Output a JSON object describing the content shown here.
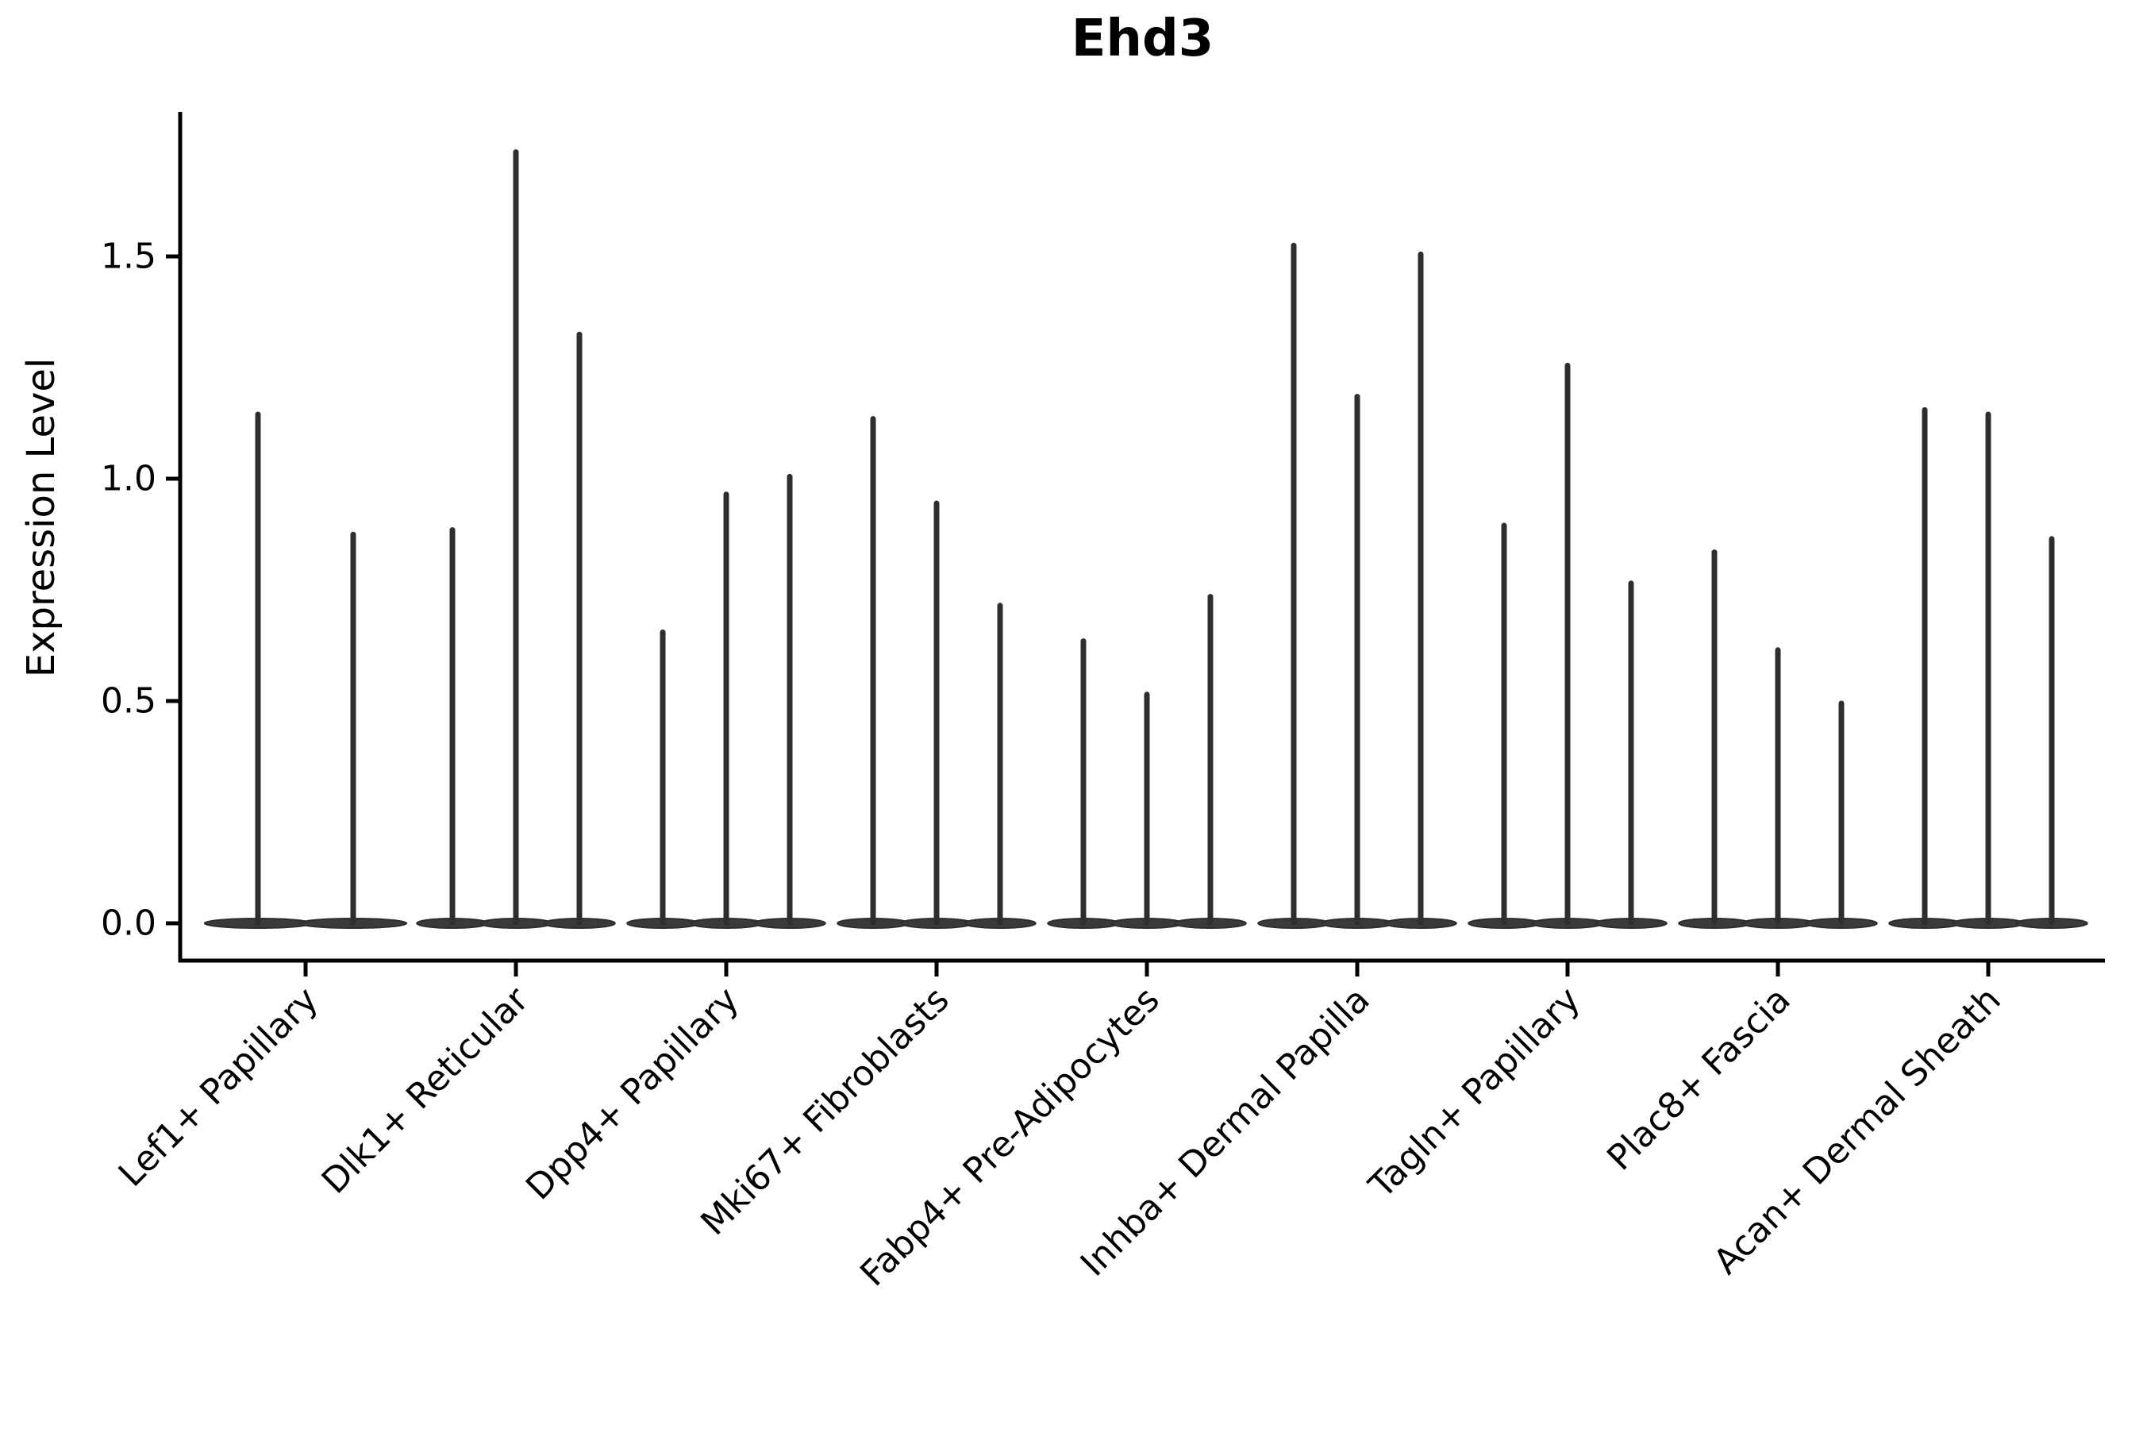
{
  "title": "Ehd3",
  "ylabel": "Expression Level",
  "chart_data": {
    "type": "violin",
    "title": "Ehd3",
    "ylabel": "Expression Level",
    "xlabel": "",
    "grid": false,
    "legend": "none",
    "yticks": [
      0.0,
      0.5,
      1.0,
      1.5
    ],
    "ylim": [
      -0.08,
      1.83
    ],
    "violin_fill_color": "#3a3a3a",
    "violin_line_color": "#2e2e2e",
    "axis_color": "#000000",
    "categories": [
      "Lef1+ Papillary",
      "Dlk1+ Reticular",
      "Dpp4+ Papillary",
      "Mki67+ Fibroblasts",
      "Fabp4+ Pre-Adipocytes",
      "Inhba+ Dermal Papilla",
      "Tagln+ Papillary",
      "Plac8+ Fascia",
      "Acan+ Dermal Sheath"
    ],
    "series": [
      {
        "category": "Lef1+ Papillary",
        "violin_maxima": [
          1.15,
          0.88
        ]
      },
      {
        "category": "Dlk1+ Reticular",
        "violin_maxima": [
          0.89,
          1.74,
          1.33
        ]
      },
      {
        "category": "Dpp4+ Papillary",
        "violin_maxima": [
          0.66,
          0.97,
          1.01
        ]
      },
      {
        "category": "Mki67+ Fibroblasts",
        "violin_maxima": [
          1.14,
          0.95,
          0.72
        ]
      },
      {
        "category": "Fabp4+ Pre-Adipocytes",
        "violin_maxima": [
          0.64,
          0.52,
          0.74
        ]
      },
      {
        "category": "Inhba+ Dermal Papilla",
        "violin_maxima": [
          1.53,
          1.19,
          1.51
        ]
      },
      {
        "category": "Tagln+ Papillary",
        "violin_maxima": [
          0.9,
          1.26,
          0.77
        ]
      },
      {
        "category": "Plac8+ Fascia",
        "violin_maxima": [
          0.84,
          0.62,
          0.5
        ]
      },
      {
        "category": "Acan+ Dermal Sheath",
        "violin_maxima": [
          1.16,
          1.15,
          0.87
        ]
      }
    ],
    "baseline_note": "all violins have dense mass at 0 (flat blob on baseline) with a thin spike up to the maximum"
  }
}
